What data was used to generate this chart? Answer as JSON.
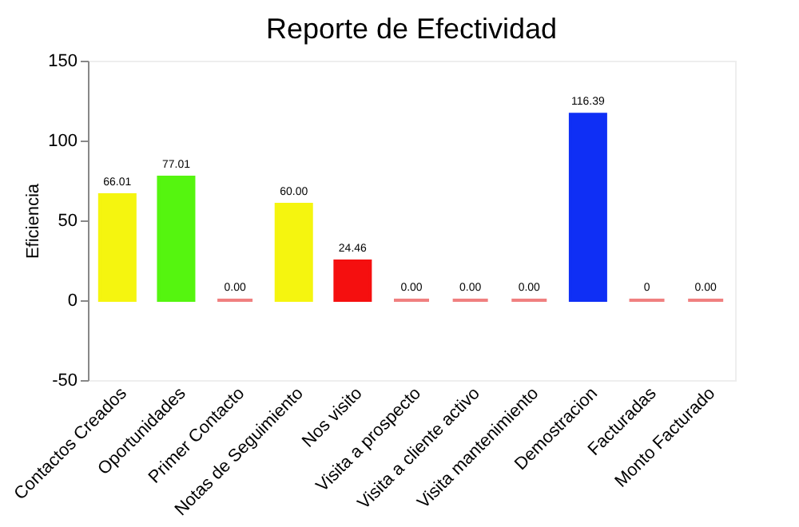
{
  "chart_data": {
    "type": "bar",
    "title": "Reporte de Efectividad",
    "ylabel": "Eficiencia",
    "categories": [
      "Contactos Creados",
      "Oportunidades",
      "Primer Contacto",
      "Notas de Seguimiento",
      "Nos visito",
      "Visita a prospecto",
      "Visita a cliente activo",
      "Visita mantenimiento",
      "Demostracion",
      "Facturadas",
      "Monto Facturado"
    ],
    "values": [
      66.01,
      77.01,
      0,
      60.0,
      24.46,
      0,
      0,
      0,
      116.39,
      0,
      0
    ],
    "value_labels": [
      "66.01",
      "77.01",
      "0.00",
      "60.00",
      "24.46",
      "0.00",
      "0.00",
      "0.00",
      "116.39",
      "0",
      "0.00"
    ],
    "colors": [
      "#f5f50f",
      "#55f50f",
      "#f08080",
      "#f5f50f",
      "#f50f0f",
      "#f08080",
      "#f08080",
      "#f08080",
      "#0f2ff5",
      "#f08080",
      "#f08080"
    ],
    "ylim": [
      -50,
      150
    ],
    "yticks": [
      -50,
      0,
      50,
      100,
      150
    ],
    "grid": false
  }
}
